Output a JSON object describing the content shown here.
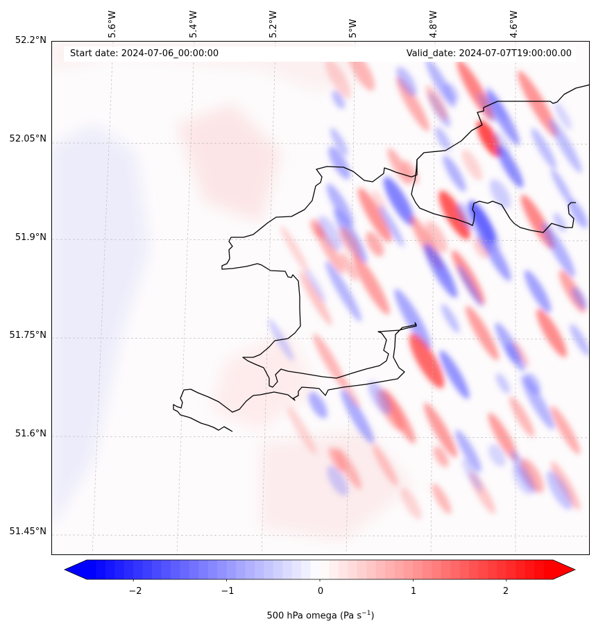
{
  "map": {
    "start_date": "Start date: 2024-07-06_00:00:00",
    "valid_date": "Valid_date: 2024-07-07T19:00:00.00",
    "lat_labels": [
      "52.2°N",
      "52.05°N",
      "51.9°N",
      "51.75°N",
      "51.6°N",
      "51.45°N"
    ],
    "lon_labels": [
      "5.6°W",
      "5.4°W",
      "5.2°W",
      "5°W",
      "4.8°W",
      "4.6°W"
    ],
    "field": "500 hPa omega",
    "colormap": "bwr",
    "colors": {
      "negative": "#0000ff",
      "zero": "#ffffff",
      "positive": "#ff0000",
      "coastline": "#000000"
    }
  },
  "colorbar": {
    "ticks": [
      "−2",
      "−1",
      "0",
      "1",
      "2"
    ],
    "tick_values": [
      -2,
      -1,
      0,
      1,
      2
    ],
    "range": [
      -2.5,
      2.5
    ],
    "label_main": "500 hPa omega (Pa s",
    "label_exp": "−1",
    "label_end": ")"
  }
}
